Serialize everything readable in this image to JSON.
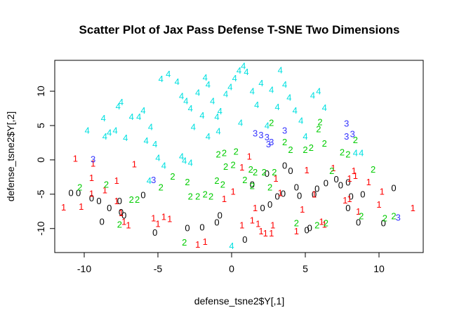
{
  "chart_data": {
    "type": "scatter",
    "title": "Scatter Plot of Jax Pass Defense T-SNE Two Dimensions",
    "xlabel": "defense_tsne2$Y[,1]",
    "ylabel": "defense_tsne2$Y[,2]",
    "xlim": [
      -12,
      13
    ],
    "ylim": [
      -13.5,
      14.5
    ],
    "xticks": [
      -10,
      -5,
      0,
      5,
      10
    ],
    "yticks": [
      -10,
      -5,
      0,
      5,
      10
    ],
    "xtick_labels": [
      "-10",
      "-5",
      "0",
      "5",
      "10"
    ],
    "ytick_labels": [
      "-10",
      "-5",
      "0",
      "5",
      "10"
    ],
    "grid": false,
    "legend": "none",
    "marker": "text labels",
    "series": [
      {
        "label": "0",
        "color": "#000000",
        "points": [
          [
            -10.9,
            -4.8
          ],
          [
            -10.4,
            -4.8
          ],
          [
            -9.5,
            -5.6
          ],
          [
            -9.0,
            -6.0
          ],
          [
            -8.8,
            -9.0
          ],
          [
            -8.3,
            -7.0
          ],
          [
            -7.5,
            -7.6
          ],
          [
            -7.3,
            -8.1
          ],
          [
            -7.6,
            -6.0
          ],
          [
            -6.0,
            -5.1
          ],
          [
            -5.2,
            -10.6
          ],
          [
            -3.0,
            -9.9
          ],
          [
            -2.0,
            -9.8
          ],
          [
            -1.0,
            -9.1
          ],
          [
            -0.8,
            -8.1
          ],
          [
            0.9,
            -11.6
          ],
          [
            2.1,
            -7.0
          ],
          [
            2.6,
            -6.5
          ],
          [
            3.1,
            -5.3
          ],
          [
            3.5,
            -4.9
          ],
          [
            4.4,
            -4.0
          ],
          [
            4.6,
            -5.2
          ],
          [
            5.1,
            -10.2
          ],
          [
            5.3,
            -9.9
          ],
          [
            5.6,
            -5.0
          ],
          [
            5.8,
            -4.2
          ],
          [
            6.4,
            -3.4
          ],
          [
            7.1,
            -2.8
          ],
          [
            7.4,
            -3.7
          ],
          [
            7.9,
            -7.0
          ],
          [
            8.1,
            -5.3
          ],
          [
            8.6,
            -9.1
          ],
          [
            8.9,
            -5.0
          ],
          [
            7.9,
            -3.3
          ],
          [
            10.3,
            -9.2
          ],
          [
            11.0,
            -4.1
          ],
          [
            3.6,
            -0.8
          ],
          [
            4.0,
            -1.6
          ],
          [
            2.4,
            -2.0
          ],
          [
            1.4,
            -3.6
          ]
        ]
      },
      {
        "label": "1",
        "color": "#ff0000",
        "points": [
          [
            -11.4,
            -6.9
          ],
          [
            -10.2,
            -6.8
          ],
          [
            -10.6,
            0.2
          ],
          [
            -9.5,
            -2.6
          ],
          [
            -9.5,
            -4.9
          ],
          [
            -8.6,
            -4.4
          ],
          [
            -7.8,
            -6.0
          ],
          [
            -7.5,
            -7.7
          ],
          [
            -7.3,
            -9.0
          ],
          [
            -7.0,
            -9.5
          ],
          [
            -6.6,
            -0.6
          ],
          [
            -5.3,
            -8.5
          ],
          [
            -5.0,
            -9.3
          ],
          [
            -4.6,
            -8.3
          ],
          [
            -2.3,
            -12.3
          ],
          [
            -1.8,
            -11.9
          ],
          [
            -0.5,
            -5.7
          ],
          [
            0.1,
            -4.6
          ],
          [
            0.7,
            -1.1
          ],
          [
            1.2,
            0.5
          ],
          [
            0.7,
            -9.5
          ],
          [
            1.6,
            -7.0
          ],
          [
            1.8,
            -9.3
          ],
          [
            2.0,
            -10.4
          ],
          [
            2.3,
            -10.7
          ],
          [
            2.7,
            -10.7
          ],
          [
            2.8,
            -9.5
          ],
          [
            3.0,
            -2.7
          ],
          [
            3.3,
            -4.8
          ],
          [
            4.4,
            -10.4
          ],
          [
            4.8,
            -7.2
          ],
          [
            5.1,
            -1.5
          ],
          [
            5.6,
            -5.0
          ],
          [
            6.1,
            -9.0
          ],
          [
            6.3,
            -9.4
          ],
          [
            6.9,
            -1.2
          ],
          [
            7.7,
            -5.9
          ],
          [
            8.0,
            -5.7
          ],
          [
            8.4,
            -2.3
          ],
          [
            8.6,
            -7.5
          ],
          [
            9.3,
            -3.2
          ],
          [
            10.0,
            -6.5
          ],
          [
            12.3,
            -7.0
          ],
          [
            10.2,
            -4.6
          ],
          [
            -9.4,
            -0.5
          ],
          [
            -4.2,
            -8.6
          ],
          [
            -7.8,
            -3.0
          ],
          [
            8.0,
            -2.7
          ],
          [
            8.3,
            -1.6
          ],
          [
            1.4,
            -8.8
          ]
        ]
      },
      {
        "label": "2",
        "color": "#00cc00",
        "points": [
          [
            -10.3,
            -4.0
          ],
          [
            -8.5,
            -3.6
          ],
          [
            -7.6,
            -9.4
          ],
          [
            -6.8,
            -5.8
          ],
          [
            -6.4,
            -5.8
          ],
          [
            -4.8,
            -4.0
          ],
          [
            -3.2,
            -12.0
          ],
          [
            -2.8,
            -5.3
          ],
          [
            -2.3,
            -5.3
          ],
          [
            -1.8,
            -5.0
          ],
          [
            -1.4,
            -5.3
          ],
          [
            -1.0,
            -3.0
          ],
          [
            -0.6,
            -3.6
          ],
          [
            -0.4,
            -1.0
          ],
          [
            -0.9,
            0.8
          ],
          [
            -0.5,
            1.0
          ],
          [
            0.1,
            -0.7
          ],
          [
            0.9,
            -2.9
          ],
          [
            1.4,
            -3.8
          ],
          [
            1.3,
            -1.4
          ],
          [
            2.6,
            -4.0
          ],
          [
            2.9,
            -1.8
          ],
          [
            2.7,
            5.4
          ],
          [
            3.6,
            2.6
          ],
          [
            4.0,
            1.5
          ],
          [
            4.4,
            -9.2
          ],
          [
            5.0,
            1.5
          ],
          [
            5.4,
            1.8
          ],
          [
            5.9,
            4.5
          ],
          [
            6.0,
            5.5
          ],
          [
            6.3,
            2.4
          ],
          [
            6.8,
            -1.6
          ],
          [
            6.4,
            -9.2
          ],
          [
            7.5,
            1.1
          ],
          [
            7.9,
            0.8
          ],
          [
            8.4,
            2.9
          ],
          [
            8.8,
            -8.2
          ],
          [
            9.6,
            -1.4
          ],
          [
            10.4,
            -8.5
          ],
          [
            11.0,
            -8.2
          ],
          [
            -4.0,
            -2.4
          ],
          [
            -3.0,
            -3.2
          ],
          [
            0.3,
            1.2
          ],
          [
            1.6,
            -1.8
          ],
          [
            2.2,
            -1.8
          ],
          [
            5.8,
            -9.5
          ]
        ]
      },
      {
        "label": "3",
        "color": "#3333ff",
        "points": [
          [
            -9.4,
            0.1
          ],
          [
            -5.3,
            -2.9
          ],
          [
            2.0,
            3.6
          ],
          [
            2.4,
            3.3
          ],
          [
            2.7,
            2.6
          ],
          [
            2.5,
            2.3
          ],
          [
            3.6,
            4.3
          ],
          [
            7.8,
            5.3
          ],
          [
            7.8,
            3.4
          ],
          [
            8.2,
            3.8
          ],
          [
            11.3,
            -8.4
          ],
          [
            1.6,
            3.9
          ]
        ]
      },
      {
        "label": "4",
        "color": "#00e0e0",
        "points": [
          [
            -9.8,
            4.3
          ],
          [
            -8.7,
            6.1
          ],
          [
            -8.6,
            3.4
          ],
          [
            -8.3,
            4.0
          ],
          [
            -7.9,
            4.3
          ],
          [
            -7.7,
            7.8
          ],
          [
            -7.5,
            8.4
          ],
          [
            -7.2,
            3.2
          ],
          [
            -6.8,
            6.3
          ],
          [
            -6.3,
            6.3
          ],
          [
            -6.0,
            7.2
          ],
          [
            -5.8,
            2.8
          ],
          [
            -5.5,
            4.8
          ],
          [
            -5.2,
            2.3
          ],
          [
            -5.0,
            0.3
          ],
          [
            -4.8,
            11.8
          ],
          [
            -4.3,
            12.5
          ],
          [
            -3.7,
            11.4
          ],
          [
            -3.4,
            9.3
          ],
          [
            -3.1,
            8.6
          ],
          [
            -2.8,
            7.5
          ],
          [
            -2.3,
            9.8
          ],
          [
            -2.0,
            6.5
          ],
          [
            -1.8,
            12.0
          ],
          [
            -1.6,
            11.0
          ],
          [
            -1.3,
            8.6
          ],
          [
            -1.0,
            6.3
          ],
          [
            -0.8,
            7.1
          ],
          [
            -0.4,
            9.6
          ],
          [
            -0.1,
            10.6
          ],
          [
            0.2,
            11.9
          ],
          [
            0.5,
            13.0
          ],
          [
            0.8,
            13.7
          ],
          [
            1.0,
            12.8
          ],
          [
            1.4,
            10.0
          ],
          [
            1.7,
            8.0
          ],
          [
            2.0,
            11.2
          ],
          [
            2.4,
            5.0
          ],
          [
            2.7,
            10.2
          ],
          [
            3.1,
            7.7
          ],
          [
            3.3,
            13.1
          ],
          [
            3.6,
            11.0
          ],
          [
            3.9,
            9.1
          ],
          [
            4.3,
            7.2
          ],
          [
            4.7,
            5.7
          ],
          [
            5.0,
            3.4
          ],
          [
            5.5,
            9.4
          ],
          [
            5.9,
            10.0
          ],
          [
            6.3,
            7.6
          ],
          [
            8.4,
            1.0
          ],
          [
            8.8,
            1.0
          ],
          [
            0.0,
            -12.5
          ],
          [
            -2.8,
            -0.4
          ],
          [
            -3.2,
            -0.1
          ],
          [
            -3.4,
            0.5
          ],
          [
            -4.6,
            -0.8
          ],
          [
            -5.6,
            -3.0
          ],
          [
            0.6,
            5.4
          ],
          [
            -2.6,
            4.8
          ],
          [
            -1.6,
            3.4
          ],
          [
            -0.9,
            4.2
          ]
        ]
      }
    ]
  }
}
